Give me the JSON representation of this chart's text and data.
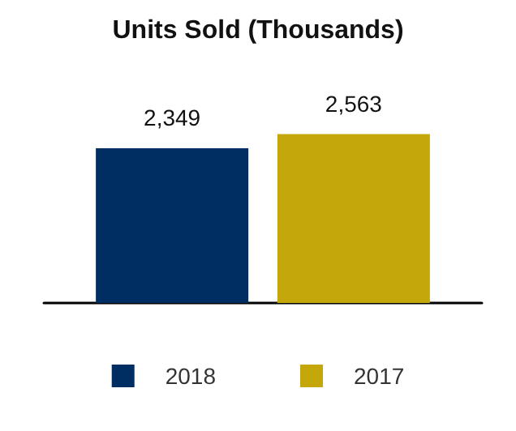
{
  "chart_data": {
    "type": "bar",
    "title": "Units Sold (Thousands)",
    "categories": [
      null
    ],
    "series": [
      {
        "name": "2018",
        "color": "#002d62",
        "values": [
          2349
        ],
        "value_labels": [
          "2,349"
        ]
      },
      {
        "name": "2017",
        "color": "#c4a70a",
        "values": [
          2563
        ],
        "value_labels": [
          "2,563"
        ]
      }
    ],
    "legend": "bottom",
    "grid": false
  }
}
